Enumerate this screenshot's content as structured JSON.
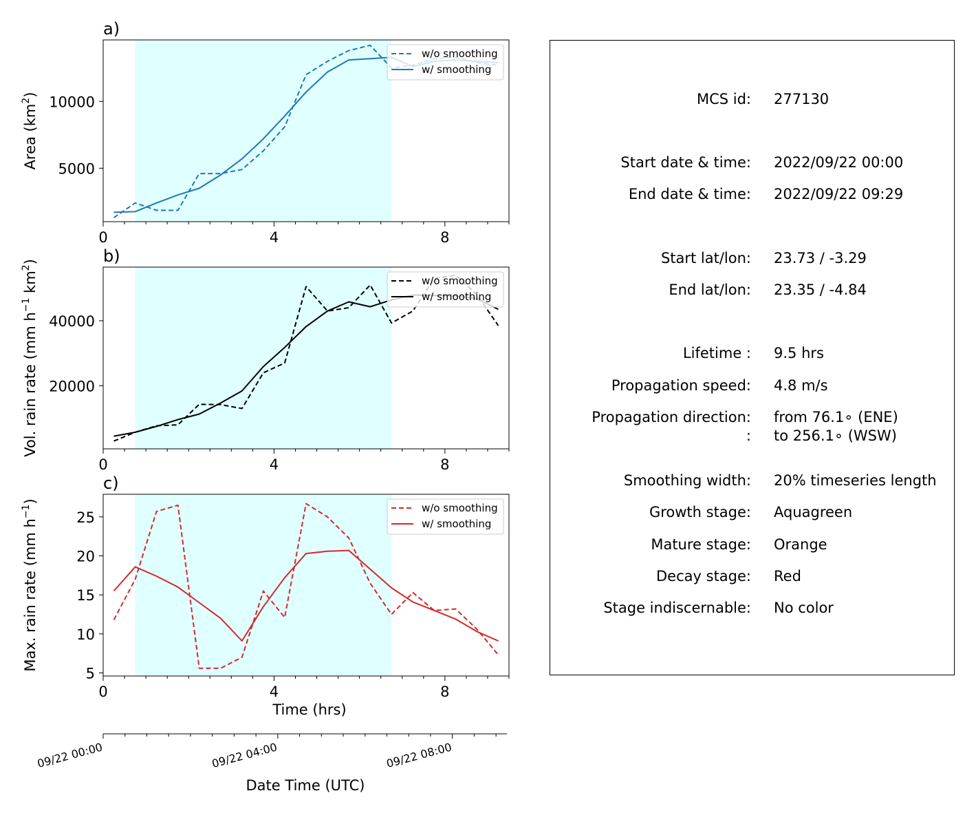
{
  "panels": [
    {
      "panel_label": "a)",
      "ylabel": "Area  (km$^2$)",
      "ylabel_main": "Area  (km",
      "ylabel_sup": "2",
      "ylabel_tail": ")",
      "color": "#1f77b4",
      "ylim": [
        1000,
        14600
      ],
      "yticks": [
        5000,
        10000
      ],
      "legend": [
        "w/o smoothing",
        "w/ smoothing"
      ]
    },
    {
      "panel_label": "b)",
      "ylabel": "Vol. rain rate (mm h$^{-1}$ km$^2$)",
      "ylabel_parts": [
        "Vol. rain rate (mm h",
        "−1",
        " km",
        "2",
        ")"
      ],
      "color": "#000000",
      "ylim": [
        600,
        56500
      ],
      "yticks": [
        20000,
        40000
      ],
      "legend": [
        "w/o smoothing",
        "w/ smoothing"
      ]
    },
    {
      "panel_label": "c)",
      "ylabel": "Max. rain rate  (mm h$^{-1}$)",
      "ylabel_parts": [
        "Max. rain rate  (mm h",
        "−1",
        ")"
      ],
      "color": "#d62728",
      "ylim": [
        4.6,
        27.9
      ],
      "yticks": [
        5,
        10,
        15,
        20,
        25
      ],
      "legend": [
        "w/o smoothing",
        "w/ smoothing"
      ],
      "xlabel": "Time (hrs)"
    }
  ],
  "chart_data": {
    "type": "line",
    "x": [
      0.25,
      0.75,
      1.25,
      1.75,
      2.25,
      2.75,
      3.25,
      3.75,
      4.25,
      4.75,
      5.25,
      5.75,
      6.25,
      6.75,
      7.25,
      7.75,
      8.25,
      8.75,
      9.25
    ],
    "xlim": [
      0,
      9.5
    ],
    "xticks": [
      0,
      4,
      8
    ],
    "shaded_span": [
      0.75,
      6.75
    ],
    "shaded_color": "#e0ffff",
    "series": [
      {
        "name": "w/o smoothing",
        "panel": 0,
        "style": "dashed",
        "values": [
          1300,
          2400,
          1850,
          1850,
          4600,
          4600,
          4900,
          6300,
          8100,
          12000,
          13000,
          13800,
          14200,
          12500,
          12700,
          13200,
          13300,
          12900,
          12700
        ]
      },
      {
        "name": "w/ smoothing",
        "panel": 0,
        "style": "solid",
        "values": [
          1700,
          1750,
          2400,
          3000,
          3500,
          4500,
          5700,
          7200,
          8900,
          10700,
          12200,
          13100,
          13200,
          13300,
          12600,
          13000,
          13100,
          13000,
          12900
        ]
      },
      {
        "name": "w/o smoothing",
        "panel": 1,
        "style": "dashed",
        "values": [
          3000,
          5700,
          7700,
          8000,
          14300,
          14200,
          13000,
          24000,
          27000,
          50500,
          43000,
          44000,
          51000,
          39300,
          43000,
          53000,
          54000,
          48000,
          38500
        ]
      },
      {
        "name": "w/ smoothing",
        "panel": 1,
        "style": "solid",
        "values": [
          4500,
          5700,
          7500,
          9600,
          11300,
          14700,
          18400,
          25900,
          31800,
          38200,
          43000,
          45800,
          44300,
          46400,
          47900,
          47800,
          47700,
          46800,
          43500
        ]
      },
      {
        "name": "w/o smoothing",
        "panel": 2,
        "style": "dashed",
        "values": [
          11.8,
          17.0,
          25.7,
          26.5,
          5.6,
          5.6,
          7.0,
          15.5,
          12.1,
          26.7,
          25.0,
          22.3,
          16.5,
          12.5,
          15.3,
          13.0,
          13.2,
          10.6,
          7.3
        ]
      },
      {
        "name": "w/ smoothing",
        "panel": 2,
        "style": "solid",
        "values": [
          15.5,
          18.6,
          17.4,
          16.0,
          14.0,
          12.0,
          9.1,
          13.5,
          17.2,
          20.3,
          20.6,
          20.7,
          18.3,
          15.9,
          14.1,
          13.0,
          11.9,
          10.3,
          9.1
        ]
      }
    ]
  },
  "datetime_axis": {
    "tick_labels": [
      "09/22 00:00",
      "09/22 04:00",
      "09/22 08:00"
    ],
    "tick_hours": [
      0,
      4,
      8
    ],
    "xlabel": "Date Time (UTC)",
    "xlim_hours": [
      0,
      9.25
    ]
  },
  "info": {
    "rows": [
      {
        "label": "MCS id:",
        "value": "277130"
      },
      {
        "label": "Start date & time:",
        "value": "2022/09/22 00:00"
      },
      {
        "label": "End date & time:",
        "value": "2022/09/22 09:29"
      },
      {
        "label": "Start lat/lon:",
        "value": "23.73 / -3.29"
      },
      {
        "label": "End lat/lon:",
        "value": "23.35 / -4.84"
      },
      {
        "label": "Lifetime :",
        "value": "9.5 hrs"
      },
      {
        "label": "Propagation speed:",
        "value": "4.8 m/s"
      },
      {
        "label": "Propagation direction:",
        "value": "from  76.1∘ (ENE)"
      },
      {
        "label": ":",
        "value": "to   256.1∘ (WSW)"
      },
      {
        "label": "Smoothing width:",
        "value": "20% timeseries length"
      },
      {
        "label": "Growth stage:",
        "value": "Aquagreen"
      },
      {
        "label": "Mature stage:",
        "value": "Orange"
      },
      {
        "label": "Decay stage:",
        "value": "Red"
      },
      {
        "label": "Stage indiscernable:",
        "value": "No color"
      }
    ]
  }
}
